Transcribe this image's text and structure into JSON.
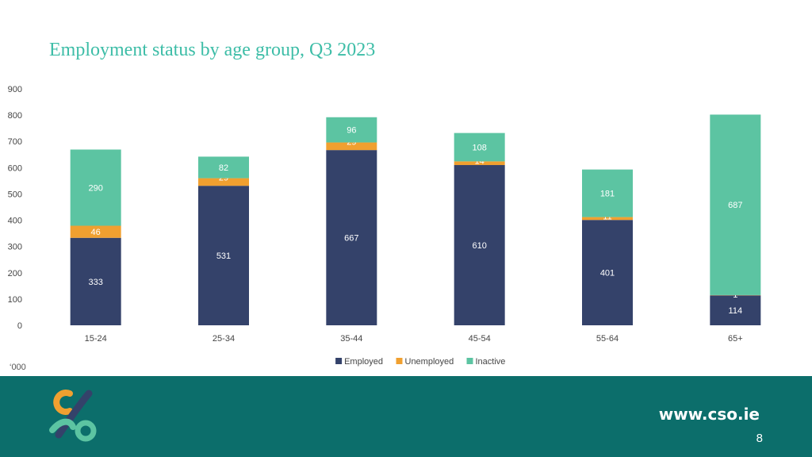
{
  "slide": {
    "unit_label": "‘000",
    "url": "www.cso.ie",
    "page_number": "8"
  },
  "colors": {
    "employed": "#34426a",
    "unemployed": "#f0a030",
    "inactive": "#5cc4a2",
    "title": "#3dbda7",
    "footer": "#0c6e6b"
  },
  "chart_data": {
    "type": "bar",
    "stacked": true,
    "title": "Employment status by age group, Q3 2023",
    "xlabel": "",
    "ylabel": "",
    "ylim": [
      0,
      900
    ],
    "yticks": [
      0,
      100,
      200,
      300,
      400,
      500,
      600,
      700,
      800,
      900
    ],
    "categories": [
      "15-24",
      "25-34",
      "35-44",
      "45-54",
      "55-64",
      "65+"
    ],
    "legend_position": "bottom",
    "series": [
      {
        "name": "Employed",
        "color": "#34426a",
        "values": [
          333,
          531,
          667,
          610,
          401,
          114
        ]
      },
      {
        "name": "Unemployed",
        "color": "#f0a030",
        "values": [
          46,
          29,
          29,
          14,
          11,
          1
        ]
      },
      {
        "name": "Inactive",
        "color": "#5cc4a2",
        "values": [
          290,
          82,
          96,
          108,
          181,
          687
        ]
      }
    ]
  }
}
